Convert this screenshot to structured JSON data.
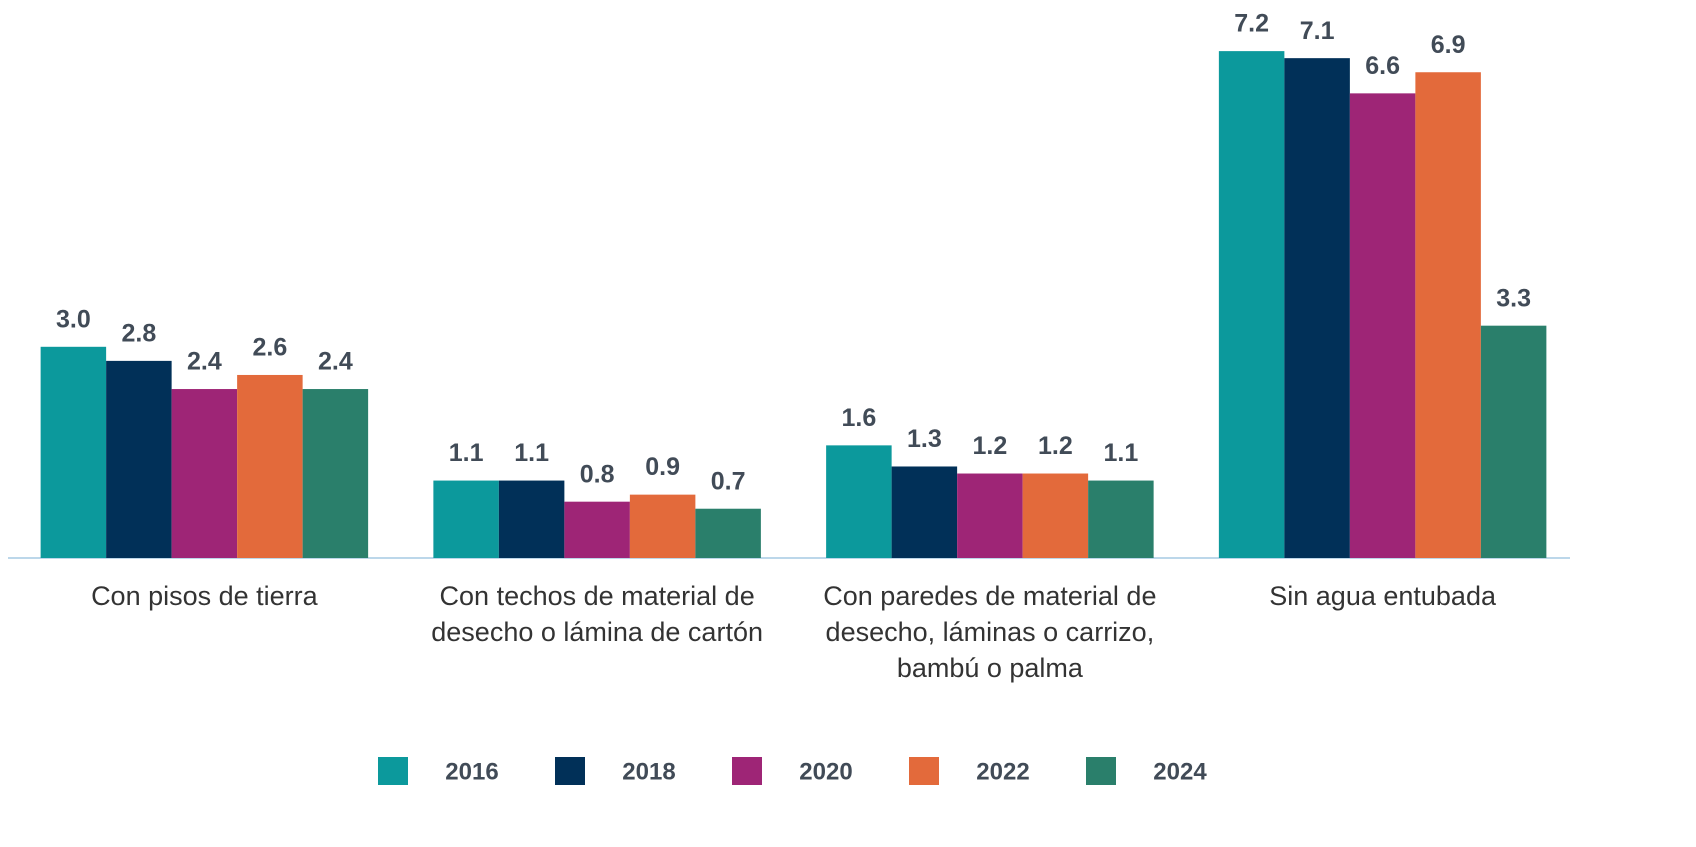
{
  "chart_data": {
    "type": "bar",
    "categories": [
      "Con pisos de tierra",
      "Con techos de material de desecho o lámina de cartón",
      "Con paredes de material de desecho, láminas o carrizo, bambú o palma",
      "Sin agua entubada"
    ],
    "series": [
      {
        "name": "2016",
        "color": "#0c999c",
        "values": [
          3,
          1.1,
          1.6,
          7.2
        ],
        "value_labels": [
          "3.0",
          "1.1",
          "1.6",
          "7.2"
        ]
      },
      {
        "name": "2018",
        "color": "#013058",
        "values": [
          2.8,
          1.1,
          1.3,
          7.1
        ],
        "value_labels": [
          "2.8",
          "1.1",
          "1.3",
          "7.1"
        ]
      },
      {
        "name": "2020",
        "color": "#9e2576",
        "values": [
          2.4,
          0.8,
          1.2,
          6.6
        ],
        "value_labels": [
          "2.4",
          "0.8",
          "1.2",
          "6.6"
        ]
      },
      {
        "name": "2022",
        "color": "#e36a3b",
        "values": [
          2.6,
          0.9,
          1.2,
          6.9
        ],
        "value_labels": [
          "2.6",
          "0.9",
          "1.2",
          "6.9"
        ]
      },
      {
        "name": "2024",
        "color": "#2a7f6b",
        "values": [
          2.4,
          0.7,
          1.1,
          3.3
        ],
        "value_labels": [
          "2.4",
          "0.7",
          "1.1",
          "3.3"
        ]
      }
    ],
    "ylim": [
      0,
      7.5
    ],
    "legend": "bottom"
  }
}
